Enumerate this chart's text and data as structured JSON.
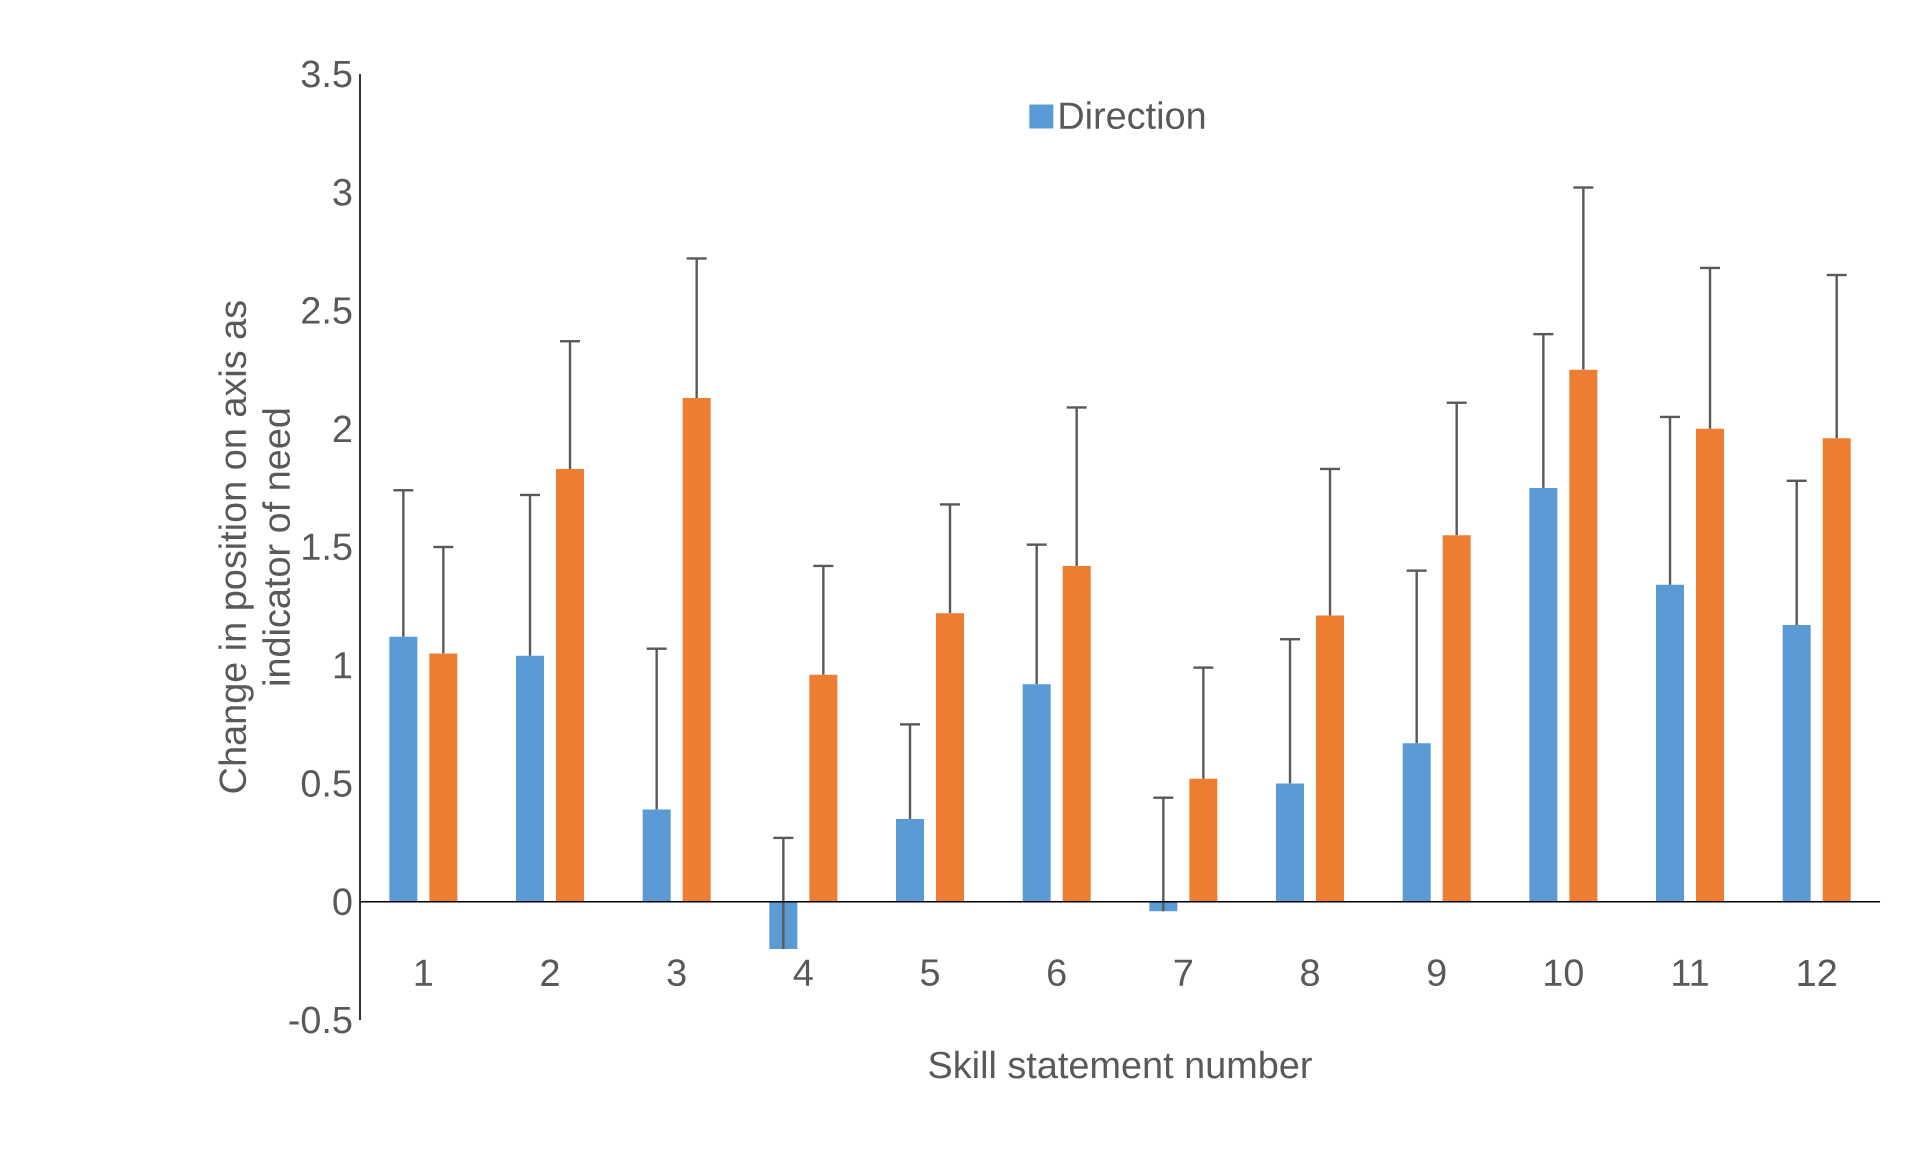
{
  "chart_data": {
    "type": "bar",
    "xlabel": "Skill statement number",
    "ylabel": "Change in position on axis as indicator of need",
    "categories": [
      "1",
      "2",
      "3",
      "4",
      "5",
      "6",
      "7",
      "8",
      "9",
      "10",
      "11",
      "12"
    ],
    "series": [
      {
        "name": "Direction",
        "color": "#5b9bd5",
        "values": [
          1.12,
          1.04,
          0.39,
          -0.2,
          0.35,
          0.92,
          -0.04,
          0.5,
          0.67,
          1.75,
          1.34,
          1.17
        ],
        "errors": [
          [
            1.12,
            1.74
          ],
          [
            1.04,
            1.72
          ],
          [
            0.39,
            1.07
          ],
          [
            -0.2,
            0.27
          ],
          [
            0.35,
            0.75
          ],
          [
            0.92,
            1.51
          ],
          [
            -0.04,
            0.44
          ],
          [
            0.5,
            1.11
          ],
          [
            0.67,
            1.4
          ],
          [
            1.75,
            2.4
          ],
          [
            1.34,
            2.05
          ],
          [
            1.17,
            1.78
          ]
        ]
      },
      {
        "color": "#ed7d31",
        "values": [
          1.05,
          1.83,
          2.13,
          0.96,
          1.22,
          1.42,
          0.52,
          1.21,
          1.55,
          2.25,
          2.0,
          1.96
        ],
        "errors": [
          [
            1.05,
            1.5
          ],
          [
            1.83,
            2.37
          ],
          [
            2.13,
            2.72
          ],
          [
            0.96,
            1.42
          ],
          [
            1.22,
            1.68
          ],
          [
            1.42,
            2.09
          ],
          [
            0.52,
            0.99
          ],
          [
            1.21,
            1.83
          ],
          [
            1.55,
            2.11
          ],
          [
            2.25,
            3.02
          ],
          [
            2.0,
            2.68
          ],
          [
            1.96,
            2.65
          ]
        ]
      }
    ],
    "ylim": [
      -0.5,
      3.5
    ],
    "yticks": [
      -0.5,
      0,
      0.5,
      1,
      1.5,
      2,
      2.5,
      3,
      3.5
    ],
    "legend": "top"
  }
}
